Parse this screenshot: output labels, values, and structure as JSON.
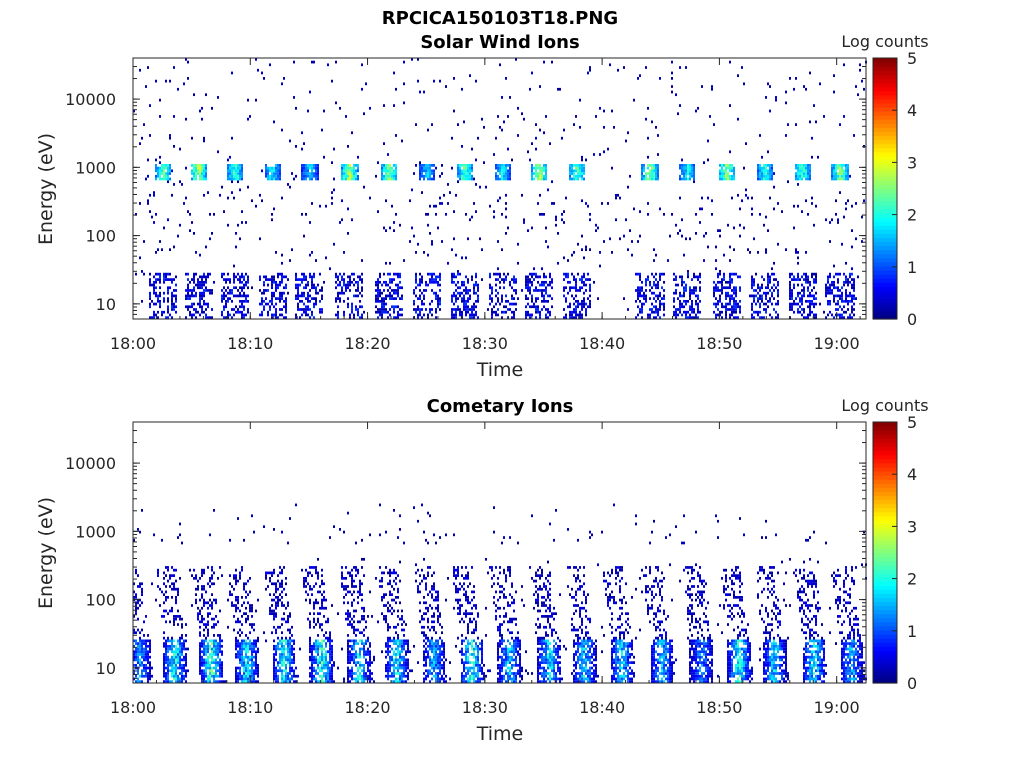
{
  "figure_title": "RPCICA150103T18.PNG",
  "colorbar": {
    "label": "Log counts",
    "ticks": [
      0,
      1,
      2,
      3,
      4,
      5
    ],
    "range": [
      0,
      5
    ],
    "colormap": "jet"
  },
  "chart_data": [
    {
      "type": "heatmap",
      "title": "Solar Wind Ions",
      "xlabel": "Time",
      "ylabel": "Energy (eV)",
      "x_ticks": [
        "18:00",
        "18:10",
        "18:20",
        "18:30",
        "18:40",
        "18:50",
        "19:00"
      ],
      "x_range_minutes": [
        0,
        62.5
      ],
      "y_scale": "log",
      "y_range": [
        6,
        40000
      ],
      "y_ticks": [
        10,
        100,
        1000,
        10000
      ],
      "color_range": [
        0,
        5
      ],
      "bursts": [
        {
          "t": 2.5,
          "level": 2.6
        },
        {
          "t": 5.5,
          "level": 3.0
        },
        {
          "t": 8.6,
          "level": 2.4
        },
        {
          "t": 11.8,
          "level": 2.0
        },
        {
          "t": 15.0,
          "level": 1.8
        },
        {
          "t": 18.4,
          "level": 3.0
        },
        {
          "t": 21.8,
          "level": 2.8
        },
        {
          "t": 25.0,
          "level": 1.8
        },
        {
          "t": 28.2,
          "level": 2.6
        },
        {
          "t": 31.4,
          "level": 2.0
        },
        {
          "t": 34.6,
          "level": 2.8
        },
        {
          "t": 37.8,
          "level": 2.6
        },
        {
          "t": 44.0,
          "level": 2.8
        },
        {
          "t": 47.2,
          "level": 2.0
        },
        {
          "t": 50.6,
          "level": 3.0
        },
        {
          "t": 53.8,
          "level": 2.2
        },
        {
          "t": 57.0,
          "level": 2.4
        },
        {
          "t": 60.2,
          "level": 2.8
        }
      ]
    },
    {
      "type": "heatmap",
      "title": "Cometary Ions",
      "xlabel": "Time",
      "ylabel": "Energy (eV)",
      "x_ticks": [
        "18:00",
        "18:10",
        "18:20",
        "18:30",
        "18:40",
        "18:50",
        "19:00"
      ],
      "x_range_minutes": [
        0,
        62.5
      ],
      "y_scale": "log",
      "y_range": [
        6,
        40000
      ],
      "y_ticks": [
        10,
        100,
        1000,
        10000
      ],
      "color_range": [
        0,
        5
      ],
      "bursts": [
        {
          "t": 0.5,
          "level": 1.6
        },
        {
          "t": 3.5,
          "level": 2.4
        },
        {
          "t": 6.6,
          "level": 2.6
        },
        {
          "t": 9.6,
          "level": 2.2
        },
        {
          "t": 12.8,
          "level": 2.4
        },
        {
          "t": 16.0,
          "level": 2.6
        },
        {
          "t": 19.2,
          "level": 2.2
        },
        {
          "t": 22.4,
          "level": 2.2
        },
        {
          "t": 25.6,
          "level": 1.8
        },
        {
          "t": 28.8,
          "level": 2.6
        },
        {
          "t": 32.0,
          "level": 2.0
        },
        {
          "t": 35.4,
          "level": 2.2
        },
        {
          "t": 38.4,
          "level": 2.0
        },
        {
          "t": 41.6,
          "level": 2.0
        },
        {
          "t": 45.0,
          "level": 2.0
        },
        {
          "t": 48.4,
          "level": 1.6
        },
        {
          "t": 51.6,
          "level": 2.4
        },
        {
          "t": 54.6,
          "level": 2.0
        },
        {
          "t": 58.0,
          "level": 2.2
        },
        {
          "t": 61.2,
          "level": 1.8
        }
      ]
    }
  ]
}
